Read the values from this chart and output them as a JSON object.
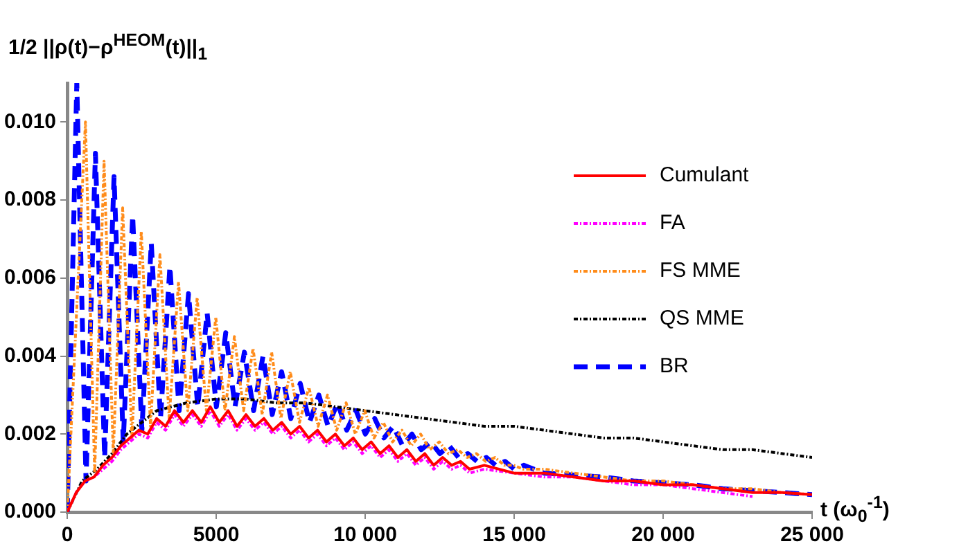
{
  "chart_data": {
    "type": "line",
    "ylabel": "1/2 ||ρ(t)−ρ$^{HEOM}$(t)||$_{1}$",
    "xlabel": "t (ω$_{0}$$^{-1}$)",
    "xlim": [
      0,
      25000
    ],
    "xticks": [
      0,
      5000,
      {
        "value": 10000,
        "label": "10 000"
      },
      {
        "value": 15000,
        "label": "15 000"
      },
      {
        "value": 20000,
        "label": "20 000"
      },
      {
        "value": 25000,
        "label": "25 000"
      }
    ],
    "ylim": [
      0,
      0.011
    ],
    "yticks": [
      {
        "value": 0,
        "label": "0.000"
      },
      {
        "value": 0.002,
        "label": "0.002"
      },
      {
        "value": 0.004,
        "label": "0.004"
      },
      {
        "value": 0.006,
        "label": "0.006"
      },
      {
        "value": 0.008,
        "label": "0.008"
      },
      {
        "value": 0.01,
        "label": "0.010"
      }
    ],
    "grid": false,
    "legend": "right",
    "marker": "none",
    "series": [
      {
        "name": "Cumulant",
        "color": "#ff0000",
        "line_style": "solid",
        "x": [
          0,
          300,
          600,
          900,
          1200,
          1500,
          1800,
          2100,
          2400,
          2700,
          3000,
          3300,
          3600,
          3900,
          4200,
          4500,
          4800,
          5100,
          5400,
          5700,
          6000,
          6300,
          6600,
          6900,
          7200,
          7500,
          7800,
          8100,
          8400,
          8700,
          9000,
          9300,
          9600,
          9900,
          10200,
          10500,
          10800,
          11100,
          11400,
          11700,
          12000,
          12300,
          12600,
          12900,
          13200,
          13500,
          14000,
          15000,
          16000,
          17000,
          18000,
          19000,
          20000,
          21000,
          22000,
          23000,
          24000,
          25000
        ],
        "values": [
          0,
          0.0005,
          0.0008,
          0.0009,
          0.0012,
          0.0014,
          0.0017,
          0.0019,
          0.0021,
          0.002,
          0.0024,
          0.0022,
          0.0026,
          0.0023,
          0.0026,
          0.0023,
          0.0027,
          0.0023,
          0.0026,
          0.0022,
          0.0025,
          0.0022,
          0.0024,
          0.0021,
          0.0023,
          0.002,
          0.0022,
          0.0019,
          0.0021,
          0.0018,
          0.002,
          0.0017,
          0.0019,
          0.0016,
          0.0018,
          0.0015,
          0.0017,
          0.0014,
          0.0016,
          0.0013,
          0.0015,
          0.0012,
          0.0014,
          0.0012,
          0.0013,
          0.0011,
          0.0012,
          0.001,
          0.001,
          0.0009,
          0.0008,
          0.0008,
          0.0007,
          0.0007,
          0.0006,
          0.0005,
          0.0005,
          0.00045
        ]
      },
      {
        "name": "FA",
        "color": "#ff00ff",
        "line_style": "dotted",
        "x": [
          0,
          300,
          600,
          900,
          1200,
          1500,
          1800,
          2100,
          2400,
          2700,
          3000,
          3300,
          3600,
          3900,
          4200,
          4500,
          4800,
          5100,
          5400,
          5700,
          6000,
          6300,
          6600,
          6900,
          7200,
          7500,
          7800,
          8100,
          8400,
          8700,
          9000,
          9300,
          9600,
          9900,
          10200,
          10500,
          10800,
          11100,
          11400,
          11700,
          12000,
          12300,
          12600,
          12900,
          13200,
          13500,
          14000,
          15000,
          16000,
          17000,
          18000,
          19000,
          20000,
          21000,
          22000,
          23000
        ],
        "values": [
          0,
          0.0005,
          0.0008,
          0.0009,
          0.0011,
          0.0013,
          0.0016,
          0.0018,
          0.002,
          0.0019,
          0.0023,
          0.0021,
          0.0025,
          0.0022,
          0.0025,
          0.0022,
          0.0026,
          0.0022,
          0.0025,
          0.0021,
          0.0024,
          0.0021,
          0.0023,
          0.002,
          0.0022,
          0.0019,
          0.0021,
          0.0018,
          0.002,
          0.0017,
          0.0019,
          0.0016,
          0.0018,
          0.0015,
          0.0017,
          0.0014,
          0.0016,
          0.0013,
          0.0015,
          0.0012,
          0.0014,
          0.0011,
          0.0013,
          0.0011,
          0.0012,
          0.001,
          0.0011,
          0.001,
          0.0009,
          0.0009,
          0.0008,
          0.0007,
          0.0007,
          0.0006,
          0.0005,
          0.0004
        ]
      },
      {
        "name": "FS MME",
        "color": "#ff8c1a",
        "line_style": "dotted",
        "x": [
          0,
          610,
          920,
          1235,
          1545,
          1860,
          2170,
          2485,
          2795,
          3110,
          3420,
          3735,
          4045,
          4360,
          4670,
          4985,
          5295,
          5610,
          5920,
          6235,
          6545,
          6860,
          7170,
          7485,
          7795,
          8110,
          8420,
          8735,
          9045,
          9360,
          9670,
          9985,
          10295,
          10610,
          10920,
          11235,
          11545,
          11860,
          12170,
          12485,
          12795,
          13110,
          13420,
          13735,
          14045,
          14360,
          14670,
          14985,
          15295,
          16000,
          17000,
          18000,
          19000,
          20000,
          21000,
          22000,
          23000,
          24000,
          25000
        ],
        "values": [
          0,
          0.01,
          0.001,
          0.009,
          0.0015,
          0.0078,
          0.0019,
          0.0072,
          0.0022,
          0.0066,
          0.0024,
          0.0059,
          0.0026,
          0.0055,
          0.0026,
          0.005,
          0.0026,
          0.0045,
          0.0026,
          0.0042,
          0.0025,
          0.0041,
          0.0024,
          0.0036,
          0.0023,
          0.0032,
          0.0022,
          0.003,
          0.0021,
          0.0028,
          0.002,
          0.0026,
          0.0019,
          0.0023,
          0.0018,
          0.0021,
          0.0017,
          0.002,
          0.0016,
          0.0018,
          0.0015,
          0.0016,
          0.0014,
          0.0015,
          0.0013,
          0.0014,
          0.0012,
          0.0012,
          0.0011,
          0.0011,
          0.001,
          0.0009,
          0.0008,
          0.0008,
          0.0007,
          0.0006,
          0.0006,
          0.0005,
          0.00045
        ]
      },
      {
        "name": "QS MME",
        "color": "#000000",
        "line_style": "dotted",
        "x": [
          0,
          500,
          1000,
          1500,
          2000,
          2500,
          3000,
          3500,
          4000,
          5000,
          6000,
          7000,
          8000,
          9000,
          10000,
          11000,
          12000,
          13000,
          14000,
          15000,
          16000,
          17000,
          18000,
          19000,
          20000,
          21000,
          22000,
          23000,
          24000,
          25000
        ],
        "values": [
          0,
          0.0008,
          0.0011,
          0.0015,
          0.002,
          0.0023,
          0.0026,
          0.0027,
          0.0028,
          0.0029,
          0.0029,
          0.0028,
          0.0028,
          0.0027,
          0.0026,
          0.0025,
          0.0024,
          0.0023,
          0.0022,
          0.0022,
          0.0021,
          0.002,
          0.0019,
          0.0019,
          0.0018,
          0.0017,
          0.0016,
          0.0016,
          0.0015,
          0.0014
        ]
      },
      {
        "name": "BR",
        "color": "#0000ff",
        "line_style": "dashed",
        "x": [
          0,
          320,
          630,
          945,
          1255,
          1570,
          1880,
          2195,
          2505,
          2820,
          3130,
          3445,
          3755,
          4070,
          4380,
          4695,
          5005,
          5320,
          5630,
          5945,
          6255,
          6570,
          6880,
          7195,
          7505,
          7820,
          8130,
          8445,
          8755,
          9070,
          9380,
          9695,
          10005,
          10320,
          10630,
          10945,
          11255,
          11570,
          11880,
          12195,
          12505,
          12820,
          13130,
          13445,
          13755,
          14070,
          14380,
          14695,
          15005,
          15320,
          16000,
          17000,
          18000,
          19000,
          20000,
          21000,
          22000,
          23000,
          24000,
          25000
        ],
        "values": [
          0,
          0.011,
          0.0008,
          0.0092,
          0.0014,
          0.0086,
          0.0018,
          0.0076,
          0.0021,
          0.0069,
          0.0024,
          0.0063,
          0.0026,
          0.0056,
          0.0027,
          0.0051,
          0.0027,
          0.0046,
          0.0027,
          0.0041,
          0.0026,
          0.004,
          0.0025,
          0.0036,
          0.0024,
          0.0033,
          0.0023,
          0.003,
          0.0022,
          0.0028,
          0.0021,
          0.0026,
          0.002,
          0.0024,
          0.0019,
          0.0022,
          0.0017,
          0.002,
          0.0016,
          0.0018,
          0.0015,
          0.0017,
          0.0014,
          0.0015,
          0.0013,
          0.0014,
          0.0012,
          0.0013,
          0.0011,
          0.0012,
          0.001,
          0.00095,
          0.0009,
          0.0008,
          0.00075,
          0.0007,
          0.0006,
          0.00055,
          0.0005,
          0.00045
        ]
      }
    ]
  }
}
